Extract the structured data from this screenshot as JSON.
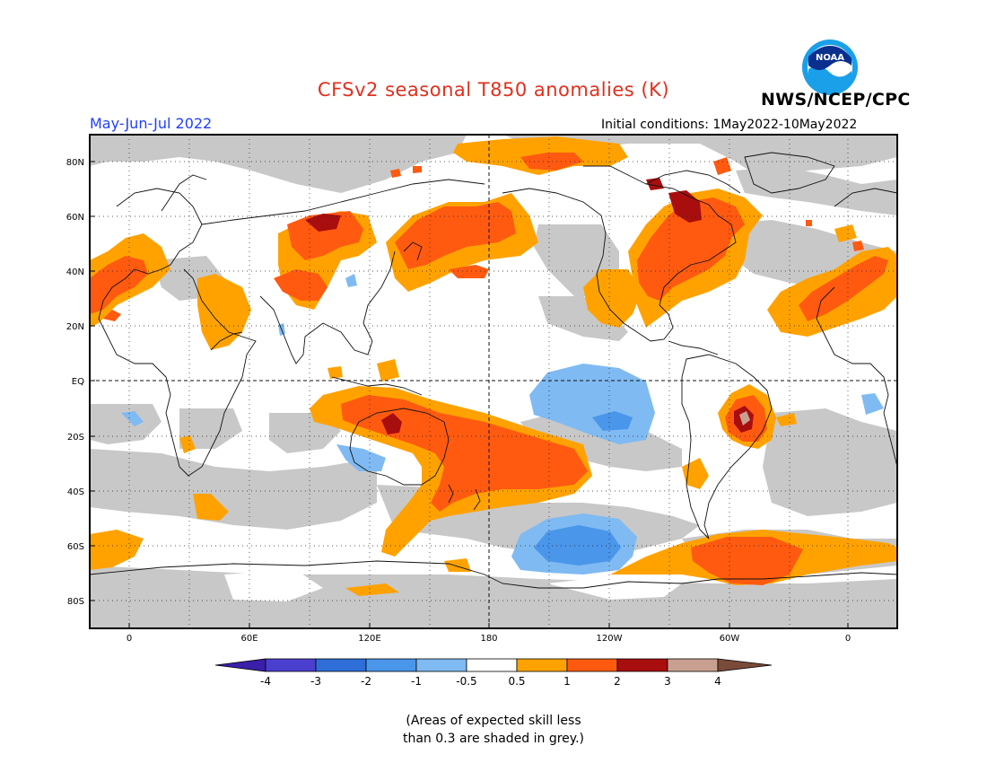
{
  "header": {
    "title": "CFSv2 seasonal T850 anomalies (K)",
    "agency": "NWS/NCEP/CPC",
    "season": "May-Jun-Jul 2022",
    "initial_conditions": "Initial conditions: 1May2022-10May2022",
    "logo_text": "NOAA"
  },
  "map": {
    "lat_ticks": [
      "80N",
      "60N",
      "40N",
      "20N",
      "EQ",
      "20S",
      "40S",
      "60S",
      "80S"
    ],
    "lon_ticks": [
      "0",
      "60E",
      "120E",
      "180",
      "120W",
      "60W",
      "0"
    ],
    "colors": {
      "skill_grey": "#c8c8c8",
      "neg_4": "#3a1fa8",
      "neg_3": "#4b3fd0",
      "neg_2": "#2f6ed8",
      "neg_1": "#4a96ea",
      "neg_05": "#7fbaf2",
      "neutral": "#ffffff",
      "pos_05": "#ffa200",
      "pos_1": "#ff5a10",
      "pos_2": "#e63a12",
      "pos_3": "#a80e0e",
      "pos_4": "#c9a090",
      "pos_max": "#7a4a3a"
    }
  },
  "colorbar": {
    "labels": [
      "-4",
      "-3",
      "-2",
      "-1",
      "-0.5",
      "0.5",
      "1",
      "2",
      "3",
      "4"
    ]
  },
  "footnote": {
    "line1": "(Areas of expected skill less",
    "line2": "than 0.3 are shaded in grey.)"
  }
}
